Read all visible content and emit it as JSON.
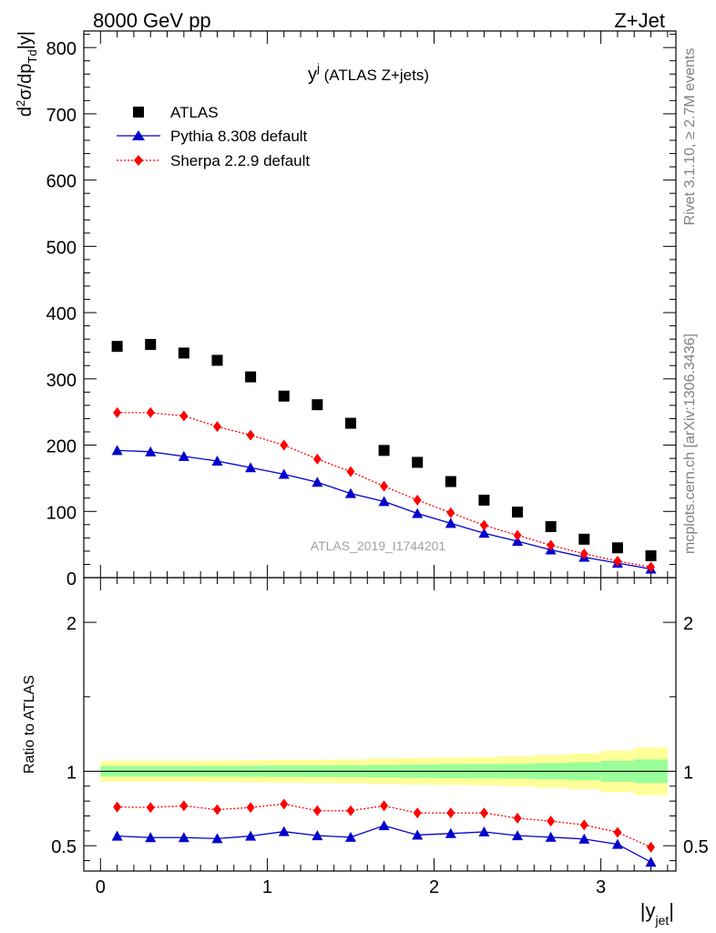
{
  "header": {
    "energy_label": "8000 GeV pp",
    "process_label": "Z+Jet",
    "rivet_label": "Rivet 3.1.10, ≥ 2.7M events",
    "mcplots_label": "mcplots.cern.ch [arXiv:1306.3436]"
  },
  "chart_data": [
    {
      "type": "scatter",
      "panel": "main",
      "title": "y^j (ATLAS Z+jets)",
      "title_main": "y",
      "title_sup": "j",
      "title_rest": " (ATLAS Z+jets)",
      "watermark": "ATLAS_2019_I1744201",
      "ylabel": "d²σ/dp_Td|y|",
      "ylim": [
        0,
        825
      ],
      "xlim": [
        -0.1,
        3.45
      ],
      "yticks": [
        0,
        100,
        200,
        300,
        400,
        500,
        600,
        700,
        800
      ],
      "legend_position": "top-left",
      "x": [
        0.1,
        0.3,
        0.5,
        0.7,
        0.9,
        1.1,
        1.3,
        1.5,
        1.7,
        1.9,
        2.1,
        2.3,
        2.5,
        2.7,
        2.9,
        3.1,
        3.3
      ],
      "series": [
        {
          "name": "ATLAS",
          "marker": "square",
          "color": "#000000",
          "values": [
            349,
            352,
            339,
            328,
            303,
            274,
            261,
            233,
            192,
            174,
            145,
            117,
            99,
            77,
            58,
            45,
            33
          ]
        },
        {
          "name": "Pythia 8.308 default",
          "marker": "triangle",
          "color": "#0000cc",
          "line": "solid",
          "values": [
            192,
            190,
            183,
            176,
            166,
            156,
            144,
            127,
            115,
            97,
            82,
            67,
            55,
            42,
            31,
            22,
            13
          ]
        },
        {
          "name": "Sherpa 2.2.9 default",
          "marker": "diamond",
          "color": "#ff0000",
          "line": "dotted",
          "values": [
            249,
            249,
            244,
            228,
            215,
            200,
            179,
            160,
            138,
            117,
            98,
            79,
            64,
            49,
            36,
            25,
            16
          ]
        }
      ]
    },
    {
      "type": "line",
      "panel": "ratio",
      "ylabel": "Ratio to ATLAS",
      "xlabel": "|y_jet|",
      "ylim": [
        0.33,
        2.3
      ],
      "xlim": [
        -0.1,
        3.45
      ],
      "yticks": [
        0.5,
        1,
        2
      ],
      "xticks": [
        0,
        1,
        2,
        3
      ],
      "x": [
        0.1,
        0.3,
        0.5,
        0.7,
        0.9,
        1.1,
        1.3,
        1.5,
        1.7,
        1.9,
        2.1,
        2.3,
        2.5,
        2.7,
        2.9,
        3.1,
        3.3
      ],
      "bin_edges": [
        0,
        0.2,
        0.4,
        0.6,
        0.8,
        1.0,
        1.2,
        1.4,
        1.6,
        1.8,
        2.0,
        2.2,
        2.4,
        2.6,
        2.8,
        3.0,
        3.2,
        3.4
      ],
      "band_inner": [
        0.035,
        0.035,
        0.035,
        0.036,
        0.037,
        0.038,
        0.039,
        0.04,
        0.042,
        0.044,
        0.046,
        0.048,
        0.05,
        0.055,
        0.06,
        0.07,
        0.08
      ],
      "band_outer": [
        0.07,
        0.07,
        0.07,
        0.072,
        0.074,
        0.076,
        0.078,
        0.08,
        0.085,
        0.09,
        0.092,
        0.095,
        0.1,
        0.11,
        0.12,
        0.14,
        0.16
      ],
      "series": [
        {
          "name": "Pythia 8.308 default",
          "marker": "triangle",
          "color": "#0000cc",
          "line": "solid",
          "values": [
            0.565,
            0.555,
            0.555,
            0.548,
            0.565,
            0.595,
            0.568,
            0.557,
            0.635,
            0.572,
            0.582,
            0.593,
            0.568,
            0.557,
            0.545,
            0.51,
            0.39
          ]
        },
        {
          "name": "Sherpa 2.2.9 default",
          "marker": "diamond",
          "color": "#ff0000",
          "line": "dotted",
          "values": [
            0.76,
            0.757,
            0.768,
            0.742,
            0.757,
            0.78,
            0.735,
            0.735,
            0.768,
            0.72,
            0.72,
            0.72,
            0.685,
            0.665,
            0.64,
            0.59,
            0.49
          ]
        }
      ]
    }
  ]
}
